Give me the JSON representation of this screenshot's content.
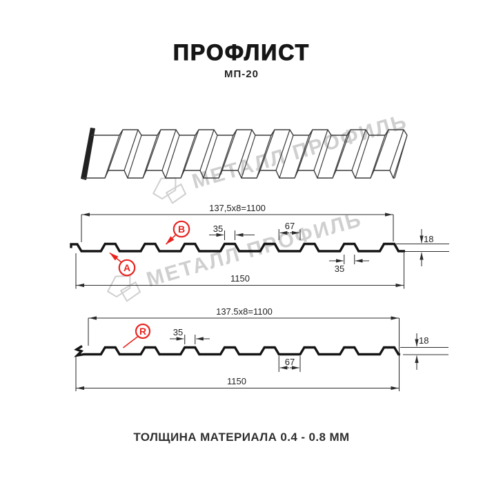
{
  "title": "ПРОФЛИСТ",
  "subtitle": "МП-20",
  "footer": "ТОЛЩИНА МАТЕРИАЛА 0.4 - 0.8 ММ",
  "watermark": {
    "text": "МЕТАЛЛ ПРОФИЛЬ"
  },
  "colors": {
    "profile_line": "#151515",
    "dim_line": "#2b2b2b",
    "accent_red": "#e8231e",
    "watermark_gray": "#c7c7c7"
  },
  "section_a": {
    "label_a": "А",
    "label_b": "В",
    "pitch_dim": "137,5x8=1100",
    "rib_top_width": "35",
    "valley_width": "67",
    "profile_height": "18",
    "rib_bottom_width": "35",
    "total_width": "1150"
  },
  "section_r": {
    "label_r": "R",
    "pitch_dim": "137.5x8=1100",
    "rib_top_width": "35",
    "valley_width": "67",
    "profile_height": "18",
    "total_width": "1150"
  }
}
